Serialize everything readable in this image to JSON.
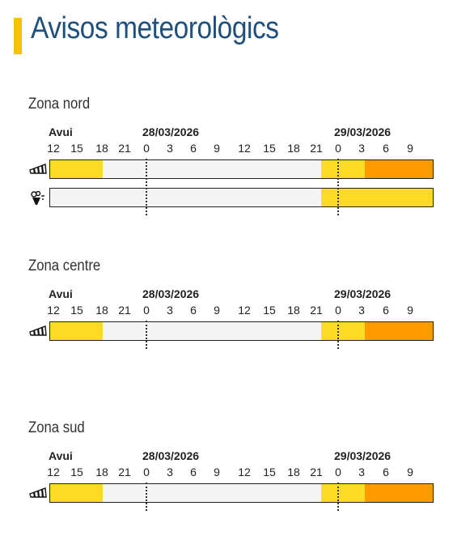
{
  "page": {
    "title": "Avisos meteorològics"
  },
  "colors": {
    "accent": "#f6c200",
    "title": "#1f4f7d",
    "none": "#f4f4f4",
    "yellow": "#fddb23",
    "orange": "#ff9900"
  },
  "days": [
    "Avui",
    "28/03/2026",
    "29/03/2026"
  ],
  "hours": [
    "12",
    "15",
    "18",
    "21",
    "0",
    "3",
    "6",
    "9",
    "12",
    "15",
    "18",
    "21",
    "0",
    "3",
    "6",
    "9"
  ],
  "zones": [
    {
      "name": "Zona nord",
      "rows": [
        {
          "icon": "wind-icon",
          "segments": [
            {
              "from": 0,
              "to": 2,
              "level": "yellow"
            },
            {
              "from": 2,
              "to": 11.2,
              "level": "none"
            },
            {
              "from": 11.2,
              "to": 13.1,
              "level": "yellow"
            },
            {
              "from": 13.1,
              "to": 16,
              "level": "orange"
            }
          ]
        },
        {
          "icon": "rain-icon",
          "segments": [
            {
              "from": 0,
              "to": 11.2,
              "level": "none"
            },
            {
              "from": 11.2,
              "to": 16,
              "level": "yellow"
            }
          ]
        }
      ]
    },
    {
      "name": "Zona centre",
      "rows": [
        {
          "icon": "wind-icon",
          "segments": [
            {
              "from": 0,
              "to": 2,
              "level": "yellow"
            },
            {
              "from": 2,
              "to": 11.2,
              "level": "none"
            },
            {
              "from": 11.2,
              "to": 13.1,
              "level": "yellow"
            },
            {
              "from": 13.1,
              "to": 16,
              "level": "orange"
            }
          ]
        }
      ]
    },
    {
      "name": "Zona sud",
      "rows": [
        {
          "icon": "wind-icon",
          "segments": [
            {
              "from": 0,
              "to": 2,
              "level": "yellow"
            },
            {
              "from": 2,
              "to": 11.2,
              "level": "none"
            },
            {
              "from": 11.2,
              "to": 13.1,
              "level": "yellow"
            },
            {
              "from": 13.1,
              "to": 16,
              "level": "orange"
            }
          ]
        }
      ]
    }
  ]
}
